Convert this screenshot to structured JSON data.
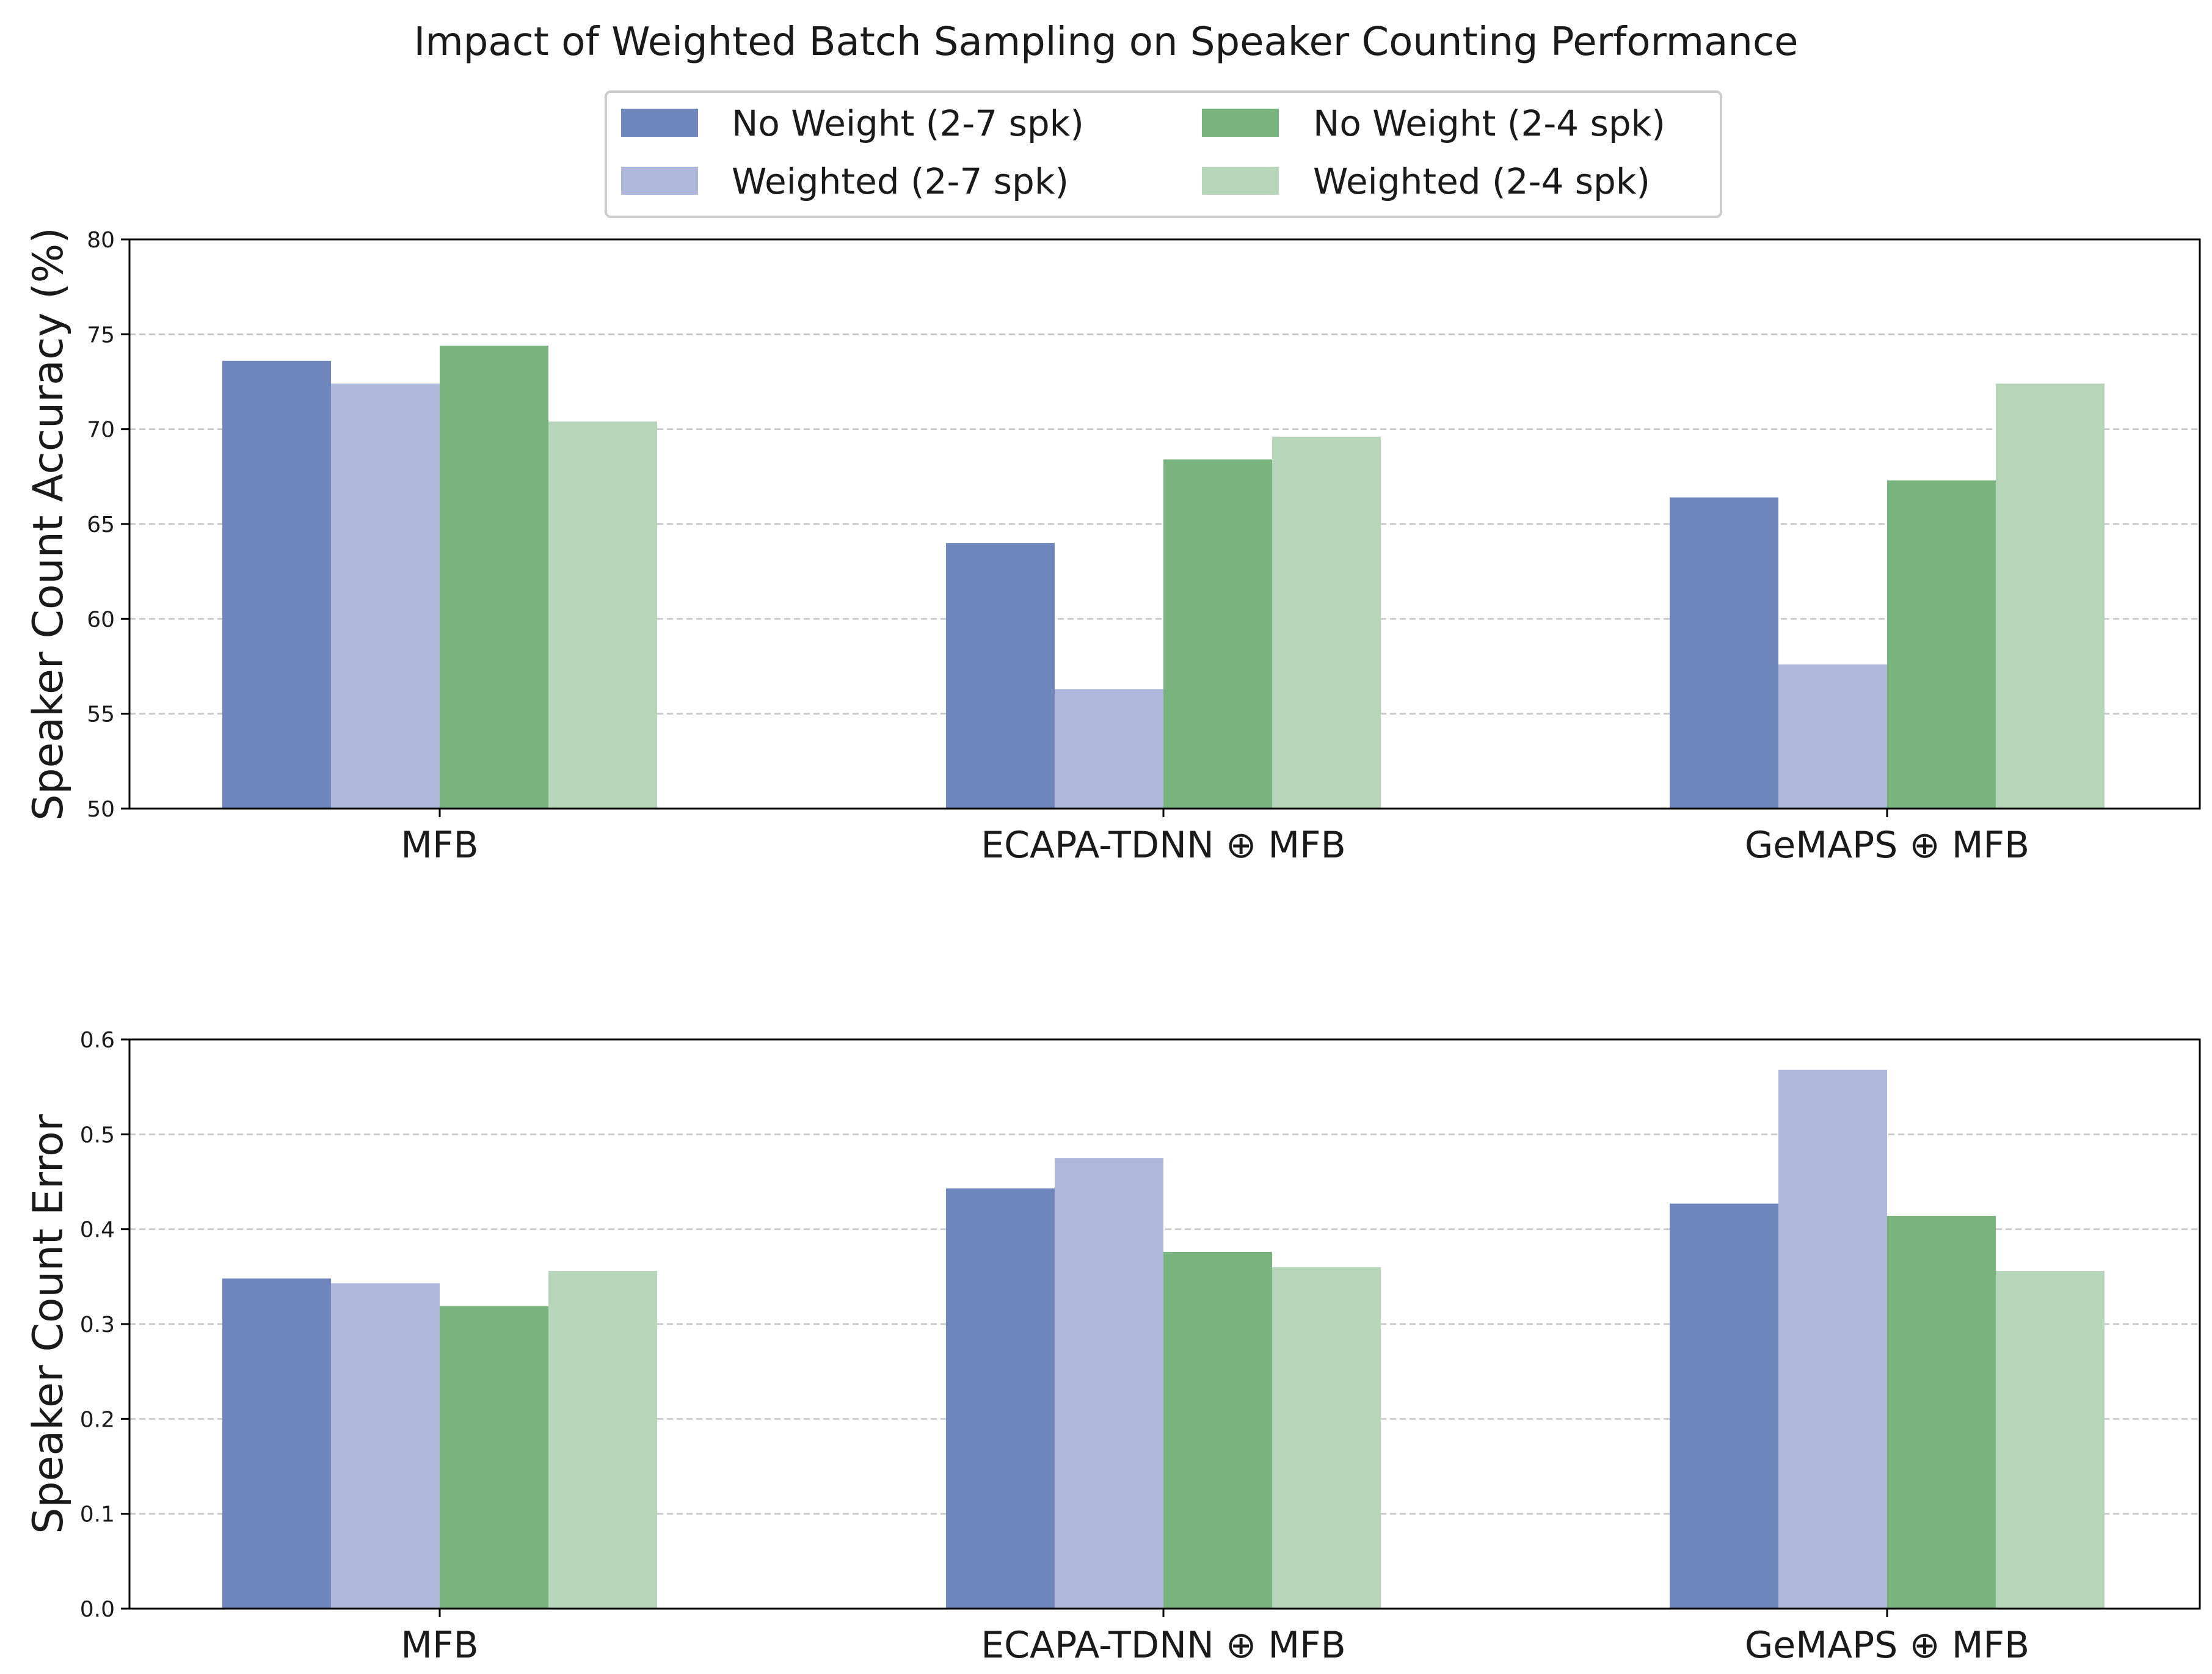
{
  "figure_title": "Impact of Weighted Batch Sampling on Speaker Counting Performance",
  "legend": [
    {
      "label": "No Weight (2-7 spk)",
      "color": "#6e86bc"
    },
    {
      "label": "Weighted (2-7 spk)",
      "color": "#adb8da"
    },
    {
      "label": "No Weight (2-4 spk)",
      "color": "#79b47f"
    },
    {
      "label": "Weighted (2-4 spk)",
      "color": "#b7d5b9"
    }
  ],
  "chart_data": [
    {
      "type": "bar",
      "title": "",
      "xlabel": "",
      "ylabel": "Speaker Count Accuracy (%)",
      "categories": [
        "MFB",
        "ECAPA-TDNN ⊕ MFB",
        "GeMAPS ⊕ MFB"
      ],
      "ylim": [
        50,
        80
      ],
      "yticks": [
        50,
        55,
        60,
        65,
        70,
        75,
        80
      ],
      "ytick_labels": [
        "50",
        "55",
        "60",
        "65",
        "70",
        "75",
        "80"
      ],
      "grid": "y-dashed",
      "series": [
        {
          "name": "No Weight (2-7 spk)",
          "values": [
            73.6,
            64.0,
            66.4
          ]
        },
        {
          "name": "Weighted (2-7 spk)",
          "values": [
            72.4,
            56.3,
            57.6
          ]
        },
        {
          "name": "No Weight (2-4 spk)",
          "values": [
            74.4,
            68.4,
            67.3
          ]
        },
        {
          "name": "Weighted (2-4 spk)",
          "values": [
            70.4,
            69.6,
            72.4
          ]
        }
      ]
    },
    {
      "type": "bar",
      "title": "",
      "xlabel": "",
      "ylabel": "Speaker Count Error",
      "categories": [
        "MFB",
        "ECAPA-TDNN ⊕ MFB",
        "GeMAPS ⊕ MFB"
      ],
      "ylim": [
        0,
        0.6
      ],
      "yticks": [
        0,
        0.1,
        0.2,
        0.3,
        0.4,
        0.5,
        0.6
      ],
      "ytick_labels": [
        "0.0",
        "0.1",
        "0.2",
        "0.3",
        "0.4",
        "0.5",
        "0.6"
      ],
      "grid": "y-dashed",
      "series": [
        {
          "name": "No Weight (2-7 spk)",
          "values": [
            0.348,
            0.443,
            0.427
          ]
        },
        {
          "name": "Weighted (2-7 spk)",
          "values": [
            0.343,
            0.475,
            0.568
          ]
        },
        {
          "name": "No Weight (2-4 spk)",
          "values": [
            0.319,
            0.376,
            0.414
          ]
        },
        {
          "name": "Weighted (2-4 spk)",
          "values": [
            0.356,
            0.36,
            0.356
          ]
        }
      ]
    }
  ]
}
